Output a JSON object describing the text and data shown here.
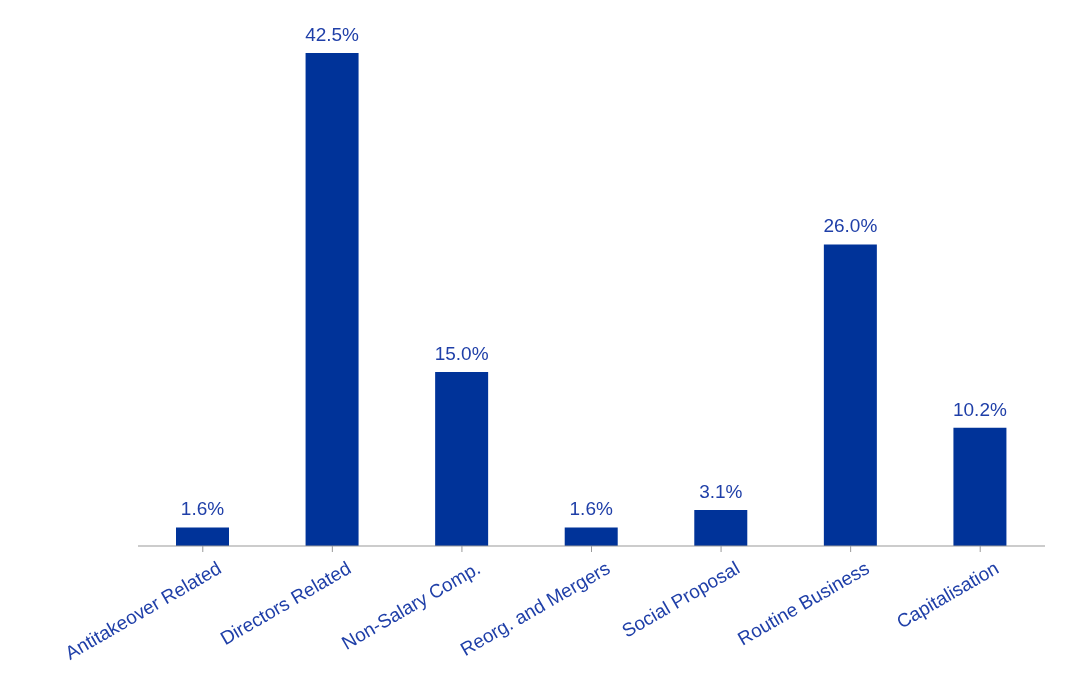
{
  "chart_data": {
    "type": "bar",
    "categories": [
      "Antitakeover Related",
      "Directors Related",
      "Non-Salary Comp.",
      "Reorg. and Mergers",
      "Social Proposal",
      "Routine Business",
      "Capitalisation"
    ],
    "values": [
      1.6,
      42.5,
      15.0,
      1.6,
      3.1,
      26.0,
      10.2
    ],
    "value_labels": [
      "1.6%",
      "42.5%",
      "15.0%",
      "1.6%",
      "3.1%",
      "26.0%",
      "10.2%"
    ],
    "color": "#003399"
  }
}
